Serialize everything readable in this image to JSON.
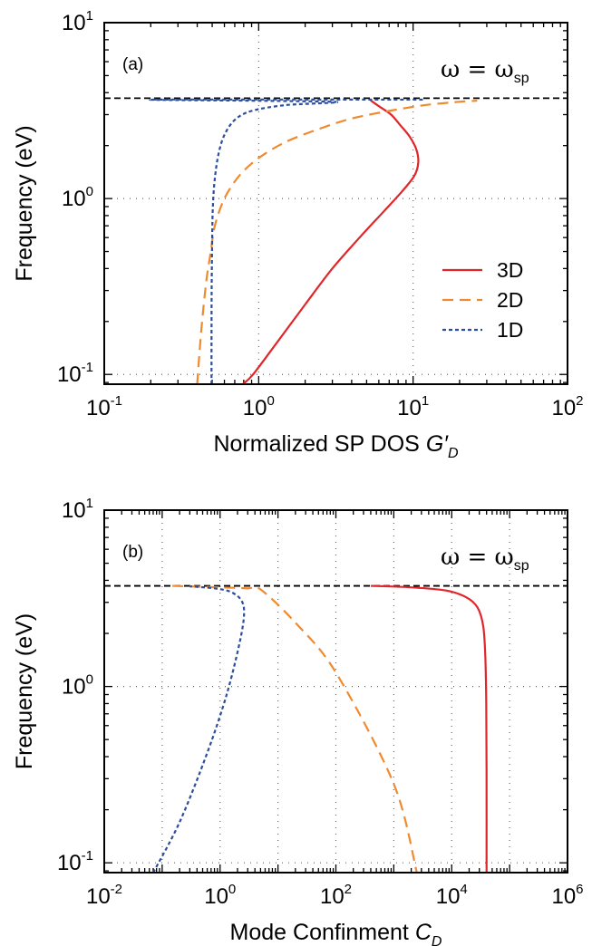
{
  "chart_data": [
    {
      "type": "line",
      "panel_label": "(a)",
      "annotation": {
        "lhs": "ω",
        "eq": " = ",
        "rhs": "ω",
        "sub": "sp"
      },
      "xlabel": {
        "text": "Normalized SP DOS  ",
        "symbol": "G",
        "prime": "′",
        "sub": "D"
      },
      "ylabel": "Frequency (eV)",
      "xscale": "log",
      "yscale": "log",
      "xlim": [
        0.1,
        100
      ],
      "ylim": [
        0.088,
        10
      ],
      "xticks": [
        {
          "value": 0.1,
          "base": "10",
          "exp": "-1"
        },
        {
          "value": 1,
          "base": "10",
          "exp": "0"
        },
        {
          "value": 10,
          "base": "10",
          "exp": "1"
        },
        {
          "value": 100,
          "base": "10",
          "exp": "2"
        }
      ],
      "yticks": [
        {
          "value": 0.1,
          "base": "10",
          "exp": "-1"
        },
        {
          "value": 1,
          "base": "10",
          "exp": "0"
        },
        {
          "value": 10,
          "base": "10",
          "exp": "1"
        }
      ],
      "hline": 3.72,
      "legend": "right",
      "series": [
        {
          "name": "3D",
          "color": "#e0262b",
          "dash": "solid",
          "points": [
            [
              0.79,
              0.088
            ],
            [
              0.92,
              0.1
            ],
            [
              1.3,
              0.15
            ],
            [
              2.0,
              0.25
            ],
            [
              3.0,
              0.4
            ],
            [
              4.5,
              0.6
            ],
            [
              6.5,
              0.85
            ],
            [
              8.5,
              1.1
            ],
            [
              10.2,
              1.35
            ],
            [
              10.8,
              1.6
            ],
            [
              10.5,
              1.9
            ],
            [
              9.5,
              2.25
            ],
            [
              8.3,
              2.6
            ],
            [
              7.2,
              3.0
            ],
            [
              6.0,
              3.35
            ],
            [
              5.3,
              3.62
            ]
          ]
        },
        {
          "name": "2D",
          "color": "#ef8a2e",
          "dash": "long",
          "points": [
            [
              0.4,
              0.088
            ],
            [
              0.41,
              0.12
            ],
            [
              0.43,
              0.2
            ],
            [
              0.46,
              0.35
            ],
            [
              0.49,
              0.5
            ],
            [
              0.52,
              0.7
            ],
            [
              0.6,
              1.0
            ],
            [
              0.75,
              1.35
            ],
            [
              1.0,
              1.7
            ],
            [
              1.5,
              2.1
            ],
            [
              2.5,
              2.5
            ],
            [
              4.0,
              2.85
            ],
            [
              7.0,
              3.15
            ],
            [
              12,
              3.4
            ],
            [
              20,
              3.55
            ],
            [
              26,
              3.6
            ]
          ]
        },
        {
          "name": "1D",
          "color": "#2c4e9c",
          "dash": "short",
          "points": [
            [
              0.495,
              0.088
            ],
            [
              0.495,
              0.15
            ],
            [
              0.496,
              0.3
            ],
            [
              0.5,
              0.6
            ],
            [
              0.505,
              0.9
            ],
            [
              0.52,
              1.3
            ],
            [
              0.55,
              1.8
            ],
            [
              0.6,
              2.3
            ],
            [
              0.7,
              2.8
            ],
            [
              0.9,
              3.15
            ],
            [
              1.5,
              3.4
            ],
            [
              3.0,
              3.55
            ],
            [
              0.2,
              3.65
            ],
            [
              12,
              3.65
            ]
          ]
        }
      ]
    },
    {
      "type": "line",
      "panel_label": "(b)",
      "annotation": {
        "lhs": "ω",
        "eq": " = ",
        "rhs": "ω",
        "sub": "sp"
      },
      "xlabel": {
        "text": "Mode Confinment  ",
        "symbol": "C",
        "prime": "",
        "sub": "D"
      },
      "ylabel": "Frequency (eV)",
      "xscale": "log",
      "yscale": "log",
      "xlim": [
        0.01,
        1000000
      ],
      "ylim": [
        0.088,
        10
      ],
      "xticks": [
        {
          "value": 0.01,
          "base": "10",
          "exp": "-2"
        },
        {
          "value": 1,
          "base": "10",
          "exp": "0"
        },
        {
          "value": 100,
          "base": "10",
          "exp": "2"
        },
        {
          "value": 10000,
          "base": "10",
          "exp": "4"
        },
        {
          "value": 1000000,
          "base": "10",
          "exp": "6"
        }
      ],
      "yticks": [
        {
          "value": 0.1,
          "base": "10",
          "exp": "-1"
        },
        {
          "value": 1,
          "base": "10",
          "exp": "0"
        },
        {
          "value": 10,
          "base": "10",
          "exp": "1"
        }
      ],
      "hline": 3.72,
      "series": [
        {
          "name": "3D",
          "color": "#e0262b",
          "dash": "solid",
          "points": [
            [
              400,
              3.72
            ],
            [
              2000,
              3.65
            ],
            [
              8000,
              3.5
            ],
            [
              18000,
              3.2
            ],
            [
              28000,
              2.8
            ],
            [
              35000,
              2.2
            ],
            [
              38000,
              1.5
            ],
            [
              39500,
              0.8
            ],
            [
              40000,
              0.3
            ],
            [
              40000,
              0.088
            ]
          ]
        },
        {
          "name": "2D",
          "color": "#ef8a2e",
          "dash": "long",
          "points": [
            [
              0.15,
              3.72
            ],
            [
              1.0,
              3.65
            ],
            [
              3.0,
              3.6
            ],
            [
              5.0,
              3.55
            ],
            [
              20,
              2.3
            ],
            [
              100,
              1.2
            ],
            [
              1000,
              0.28
            ],
            [
              2500,
              0.088
            ]
          ]
        },
        {
          "name": "1D",
          "color": "#2c4e9c",
          "dash": "short",
          "points": [
            [
              0.07,
              0.088
            ],
            [
              0.2,
              0.17
            ],
            [
              0.6,
              0.42
            ],
            [
              1.3,
              0.9
            ],
            [
              2.2,
              1.8
            ],
            [
              2.6,
              2.6
            ],
            [
              2.3,
              3.1
            ],
            [
              1.5,
              3.45
            ],
            [
              0.8,
              3.6
            ],
            [
              0.3,
              3.7
            ]
          ]
        }
      ]
    }
  ]
}
